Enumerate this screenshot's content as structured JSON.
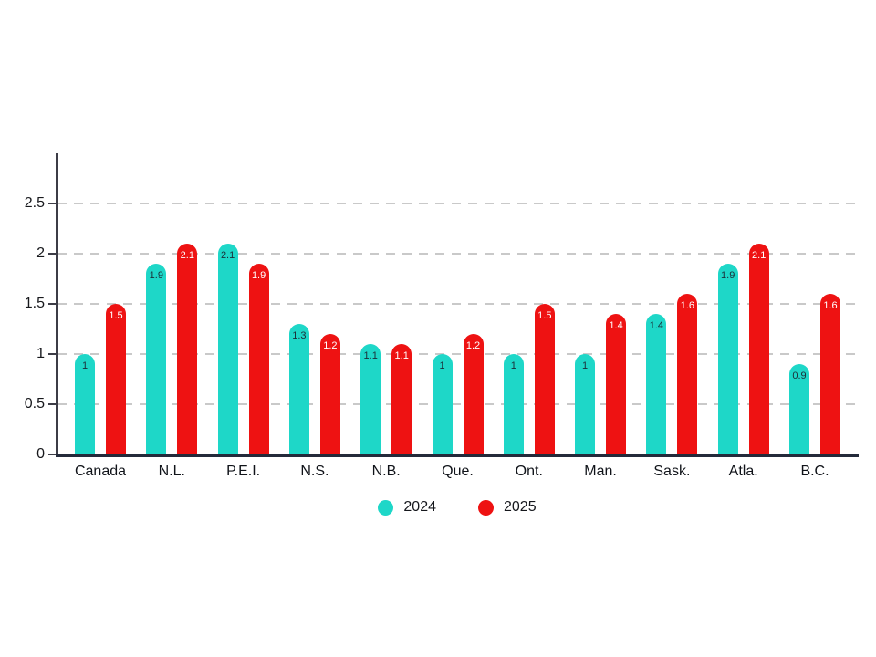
{
  "chart_data": {
    "type": "bar",
    "title": "",
    "xlabel": "",
    "ylabel": "",
    "categories": [
      "Canada",
      "N.L.",
      "P.E.I.",
      "N.S.",
      "N.B.",
      "Que.",
      "Ont.",
      "Man.",
      "Sask.",
      "Atla.",
      "B.C."
    ],
    "series": [
      {
        "name": "2024",
        "color": "#1ed7c8",
        "label_color": "#1c2e38",
        "values": [
          1,
          1.9,
          2.1,
          1.3,
          1.1,
          1,
          1,
          1,
          1.4,
          1.9,
          0.9
        ],
        "labels": [
          "1",
          "1.9",
          "2.1",
          "1.3",
          "1.1",
          "1",
          "1",
          "1",
          "1.4",
          "1.9",
          "0.9"
        ]
      },
      {
        "name": "2025",
        "color": "#ee1212",
        "label_color": "#ffffff",
        "values": [
          1.5,
          2.1,
          1.9,
          1.2,
          1.1,
          1.2,
          1.5,
          1.4,
          1.6,
          2.1,
          1.6
        ],
        "labels": [
          "1.5",
          "2.1",
          "1.9",
          "1.2",
          "1.1",
          "1.2",
          "1.5",
          "1.4",
          "1.6",
          "2.1",
          "1.6"
        ]
      }
    ],
    "yticks": [
      "0",
      "0.5",
      "1",
      "1.5",
      "2",
      "2.5"
    ],
    "ytick_values": [
      0,
      0.5,
      1,
      1.5,
      2,
      2.5
    ],
    "ylim": [
      0,
      3
    ],
    "grid": "horizontal-dashed",
    "legend_position": "bottom-center",
    "axis_color": "#3c3c46",
    "baseline_color": "#242a3a",
    "gridline_color": "#c9c9c9"
  }
}
